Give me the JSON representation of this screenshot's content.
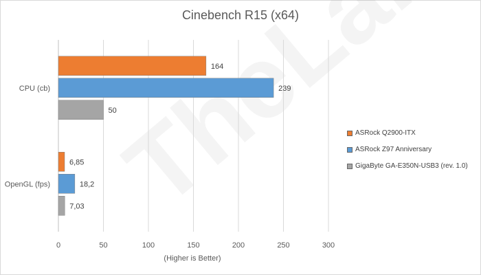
{
  "chart_data": {
    "type": "bar",
    "orientation": "horizontal",
    "title": "Cinebench R15 (x64)",
    "xlabel": "(Higher is Better)",
    "ylabel": "",
    "xlim": [
      0,
      300
    ],
    "xticks": [
      0,
      50,
      100,
      150,
      200,
      250,
      300
    ],
    "grid": true,
    "legend_position": "right",
    "categories": [
      "CPU (cb)",
      "OpenGL (fps)"
    ],
    "series": [
      {
        "name": "ASRock Q2900-ITX",
        "values": [
          164,
          6.85
        ],
        "labels": [
          "164",
          "6,85"
        ],
        "color": "#ED7D31"
      },
      {
        "name": "ASRock Z97 Anniversary",
        "values": [
          239,
          18.2
        ],
        "labels": [
          "239",
          "18,2"
        ],
        "color": "#5B9BD5"
      },
      {
        "name": "GigaByte GA-E350N-USB3 (rev. 1.0)",
        "values": [
          50,
          7.03
        ],
        "labels": [
          "50",
          "7,03"
        ],
        "color": "#A5A5A5"
      }
    ]
  },
  "watermark": "TheLab.gr"
}
